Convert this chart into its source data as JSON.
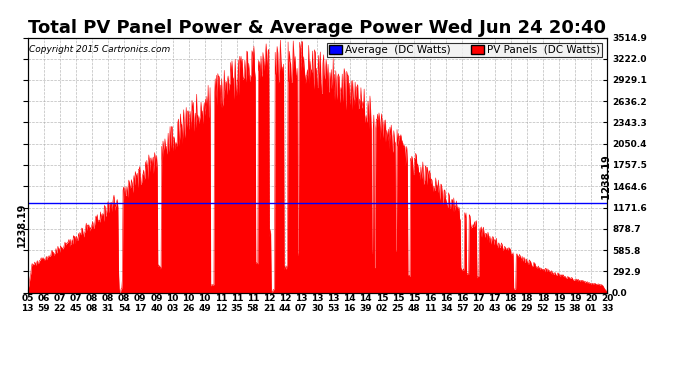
{
  "title": "Total PV Panel Power & Average Power Wed Jun 24 20:40",
  "copyright": "Copyright 2015 Cartronics.com",
  "average_value": 1238.19,
  "y_max": 3514.9,
  "y_min": 0.0,
  "y_ticks": [
    0.0,
    292.9,
    585.8,
    878.7,
    1171.6,
    1464.6,
    1757.5,
    2050.4,
    2343.3,
    2636.2,
    2929.1,
    3222.0,
    3514.9
  ],
  "background_color": "#ffffff",
  "grid_color": "#aaaaaa",
  "fill_color": "#ff0000",
  "avg_line_color": "#0000ff",
  "avg_label": "Average  (DC Watts)",
  "pv_label": "PV Panels  (DC Watts)",
  "x_labels": [
    "05\n13",
    "06\n59",
    "07\n22",
    "07\n45",
    "08\n08",
    "08\n31",
    "08\n54",
    "09\n17",
    "09\n40",
    "10\n03",
    "10\n26",
    "10\n49",
    "11\n12",
    "11\n35",
    "11\n58",
    "12\n21",
    "12\n44",
    "13\n07",
    "13\n30",
    "13\n53",
    "14\n16",
    "14\n39",
    "15\n02",
    "15\n25",
    "15\n48",
    "16\n11",
    "16\n34",
    "16\n57",
    "17\n20",
    "17\n43",
    "18\n06",
    "18\n29",
    "18\n52",
    "19\n15",
    "19\n38",
    "20\n01",
    "20\n33"
  ],
  "title_fontsize": 13,
  "tick_fontsize": 6.5,
  "legend_fontsize": 7.5,
  "avg_label_fontsize": 7.0
}
